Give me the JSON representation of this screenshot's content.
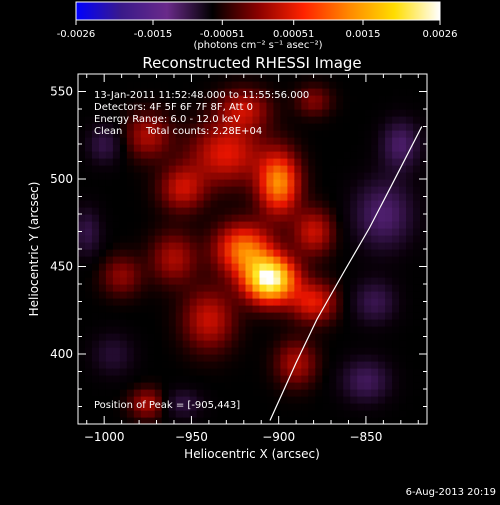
{
  "colorbar": {
    "tick_labels": [
      "-0.0026",
      "-0.0015",
      "-0.00051",
      "0.00051",
      "0.0015",
      "0.0026"
    ],
    "tick_values": [
      -0.0026,
      -0.0015,
      -0.00051,
      0.00051,
      0.0015,
      0.0026
    ],
    "range": [
      -0.0026,
      0.0026
    ],
    "units_label": "(photons cm⁻² s⁻¹ asec⁻²)",
    "colors": [
      "#0000ff",
      "#3a1a8a",
      "#6a2a8a",
      "#000000",
      "#8a0000",
      "#ff2200",
      "#ff8800",
      "#ffdd00",
      "#ffffff"
    ]
  },
  "chart_data": {
    "type": "heatmap",
    "title": "Reconstructed RHESSI Image",
    "xlabel": "Heliocentric X (arcsec)",
    "ylabel": "Heliocentric Y (arcsec)",
    "xlim": [
      -1015,
      -815
    ],
    "ylim": [
      360,
      560
    ],
    "x_ticks": [
      -1000,
      -950,
      -900,
      -850
    ],
    "y_ticks": [
      400,
      450,
      500,
      550
    ],
    "x_tick_labels": [
      "−1000",
      "−950",
      "−900",
      "−850"
    ],
    "y_tick_labels": [
      "400",
      "450",
      "500",
      "550"
    ],
    "annotations": [
      "13-Jan-2011 11:52:48.000 to 11:55:56.000",
      "Detectors: 4F 5F 6F 7F 8F, Att 0",
      "Energy Range: 6.0 - 12.0 keV",
      "Clean",
      "Total counts: 2.28E+04",
      "Position of Peak = [-905,443]"
    ],
    "peak": {
      "x": -905,
      "y": 443,
      "value": 0.0026
    },
    "blobs": [
      {
        "x": -905,
        "y": 443,
        "sx": 10,
        "sy": 9,
        "amp": 1.0
      },
      {
        "x": -920,
        "y": 460,
        "sx": 11,
        "sy": 10,
        "amp": 0.55
      },
      {
        "x": -900,
        "y": 498,
        "sx": 8,
        "sy": 12,
        "amp": 0.6
      },
      {
        "x": -930,
        "y": 515,
        "sx": 14,
        "sy": 12,
        "amp": 0.35
      },
      {
        "x": -955,
        "y": 495,
        "sx": 9,
        "sy": 9,
        "amp": 0.3
      },
      {
        "x": -960,
        "y": 455,
        "sx": 9,
        "sy": 10,
        "amp": 0.25
      },
      {
        "x": -940,
        "y": 420,
        "sx": 10,
        "sy": 12,
        "amp": 0.3
      },
      {
        "x": -975,
        "y": 525,
        "sx": 9,
        "sy": 9,
        "amp": 0.25
      },
      {
        "x": -920,
        "y": 540,
        "sx": 10,
        "sy": 8,
        "amp": 0.28
      },
      {
        "x": -880,
        "y": 470,
        "sx": 8,
        "sy": 9,
        "amp": 0.3
      },
      {
        "x": -880,
        "y": 430,
        "sx": 9,
        "sy": 8,
        "amp": 0.35
      },
      {
        "x": -890,
        "y": 395,
        "sx": 8,
        "sy": 9,
        "amp": 0.25
      },
      {
        "x": -990,
        "y": 445,
        "sx": 8,
        "sy": 8,
        "amp": 0.2
      },
      {
        "x": -975,
        "y": 372,
        "sx": 7,
        "sy": 6,
        "amp": 0.25
      },
      {
        "x": -880,
        "y": 545,
        "sx": 7,
        "sy": 6,
        "amp": 0.18
      },
      {
        "x": -1000,
        "y": 520,
        "sx": 7,
        "sy": 8,
        "amp": -0.2
      },
      {
        "x": -995,
        "y": 400,
        "sx": 9,
        "sy": 9,
        "amp": -0.15
      },
      {
        "x": -840,
        "y": 480,
        "sx": 12,
        "sy": 14,
        "amp": -0.3
      },
      {
        "x": -830,
        "y": 520,
        "sx": 8,
        "sy": 10,
        "amp": -0.28
      },
      {
        "x": -845,
        "y": 430,
        "sx": 9,
        "sy": 9,
        "amp": -0.22
      },
      {
        "x": -850,
        "y": 385,
        "sx": 10,
        "sy": 9,
        "amp": -0.25
      },
      {
        "x": -955,
        "y": 372,
        "sx": 8,
        "sy": 6,
        "amp": -0.18
      },
      {
        "x": -1010,
        "y": 470,
        "sx": 6,
        "sy": 10,
        "amp": -0.2
      }
    ],
    "limb_line": {
      "x": [
        -905,
        -890,
        -878,
        -862,
        -848,
        -835,
        -818
      ],
      "y": [
        362,
        395,
        420,
        448,
        472,
        497,
        530
      ]
    }
  },
  "footer": {
    "date": "6-Aug-2013 20:19"
  }
}
